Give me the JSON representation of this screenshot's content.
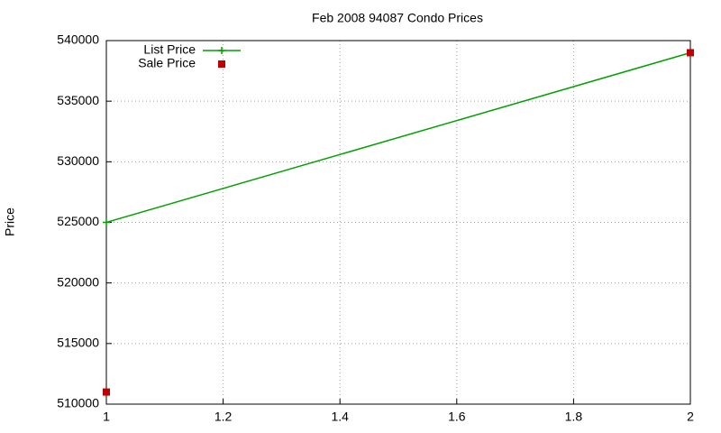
{
  "chart_data": {
    "type": "line",
    "title": "Feb 2008 94087 Condo Prices",
    "y_label": "Price",
    "x": [
      1,
      2
    ],
    "series": [
      {
        "name": "List Price",
        "color": "#00a000",
        "line": true,
        "marker": "plus",
        "values": [
          525000,
          539000
        ]
      },
      {
        "name": "Sale Price",
        "color": "#c00000",
        "line": false,
        "marker": "square",
        "values": [
          511000,
          539000
        ]
      }
    ],
    "xlim": [
      1,
      2
    ],
    "xticks": [
      1,
      1.2,
      1.4,
      1.6,
      1.8,
      2
    ],
    "ylim": [
      510000,
      540000
    ],
    "yticks": [
      510000,
      515000,
      520000,
      525000,
      530000,
      535000,
      540000
    ],
    "grid": true,
    "legend": "top-left"
  }
}
